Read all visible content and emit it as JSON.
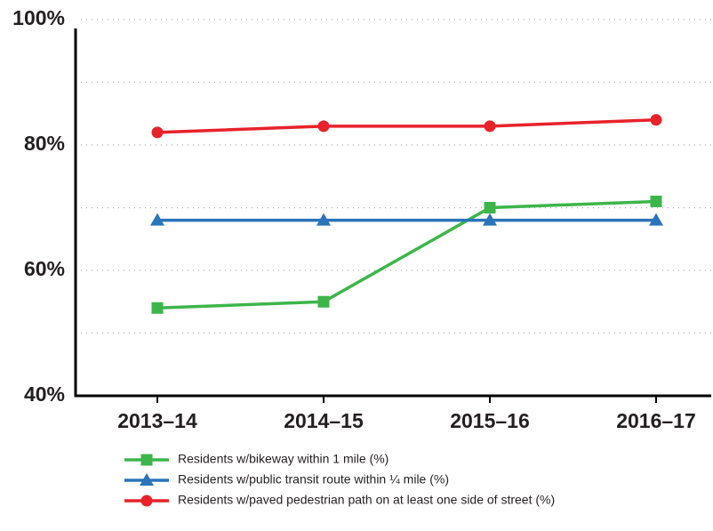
{
  "chart_data": {
    "type": "line",
    "categories": [
      "2013–14",
      "2014–15",
      "2015–16",
      "2016–17"
    ],
    "series": [
      {
        "name": "Residents w/bikeway within 1 mile (%)",
        "color": "#3db54a",
        "marker": "square",
        "values": [
          54,
          55,
          70,
          71
        ]
      },
      {
        "name": "Residents w/public transit route within ¼ mile (%)",
        "color": "#2b74b9",
        "marker": "triangle",
        "values": [
          68,
          68,
          68,
          68
        ]
      },
      {
        "name": "Residents w/paved pedestrian path on at least one side of street (%)",
        "color": "#e8222a",
        "marker": "circle",
        "values": [
          82,
          83,
          83,
          84
        ]
      }
    ],
    "ylim": [
      40,
      100
    ],
    "yticks": [
      {
        "value": 40,
        "label": "40%"
      },
      {
        "value": 60,
        "label": "60%"
      },
      {
        "value": 80,
        "label": "80%"
      },
      {
        "value": 100,
        "label": "100%"
      }
    ],
    "grid_lines": [
      50,
      60,
      70,
      80,
      90,
      100
    ],
    "grid": true,
    "legend": "bottom"
  }
}
